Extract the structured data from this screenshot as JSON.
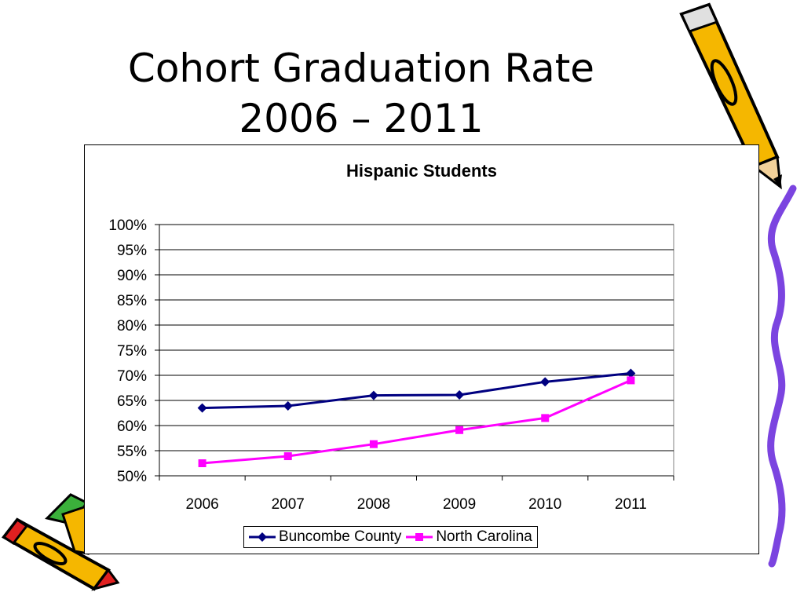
{
  "slide": {
    "title_line1": "Cohort Graduation Rate",
    "title_line2": "2006 – 2011"
  },
  "decoration": {
    "icons": [
      "pencil-icon",
      "pencil-icon",
      "squiggle-line-icon"
    ]
  },
  "chart_data": {
    "type": "line",
    "title": "Hispanic Students",
    "xlabel": "",
    "ylabel": "",
    "categories": [
      "2006",
      "2007",
      "2008",
      "2009",
      "2010",
      "2011"
    ],
    "ylim": [
      0.5,
      1.0
    ],
    "y_ticks": [
      "50%",
      "55%",
      "60%",
      "65%",
      "70%",
      "75%",
      "80%",
      "85%",
      "90%",
      "95%",
      "100%"
    ],
    "grid": true,
    "legend_position": "bottom",
    "series": [
      {
        "name": "Buncombe County",
        "color": "#000080",
        "marker": "diamond",
        "values": [
          0.635,
          0.639,
          0.66,
          0.661,
          0.687,
          0.704
        ]
      },
      {
        "name": "North Carolina",
        "color": "#ff00ff",
        "marker": "square",
        "values": [
          0.525,
          0.539,
          0.563,
          0.591,
          0.615,
          0.69
        ]
      }
    ]
  }
}
